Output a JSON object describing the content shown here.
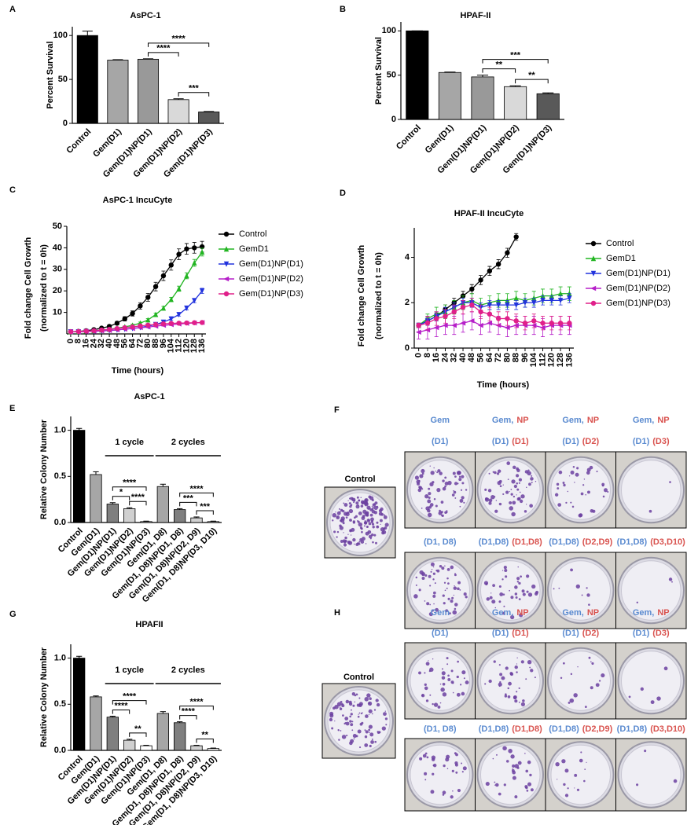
{
  "chart_data": [
    {
      "type": "bar",
      "panel_label": "A",
      "title": "AsPC-1",
      "y_label": "Percent Survival",
      "categories": [
        "Control",
        "Gem(D1)",
        "Gem(D1)NP(D1)",
        "Gem(D1)NP(D2)",
        "Gem(D1)NP(D3)"
      ],
      "values": [
        100,
        72,
        73,
        27,
        13
      ],
      "errors": [
        5,
        0.5,
        0.5,
        1,
        0.5
      ],
      "colors": [
        "#000000",
        "#a6a6a6",
        "#999999",
        "#d9d9d9",
        "#595959"
      ],
      "ylim": [
        0,
        110
      ],
      "yticks": [
        0,
        50,
        100
      ],
      "annotations": [
        {
          "text": "****",
          "between": [
            "Gem(D1)NP(D1)",
            "Gem(D1)NP(D3)"
          ]
        },
        {
          "text": "****",
          "between": [
            "Gem(D1)NP(D1)",
            "Gem(D1)NP(D2)"
          ]
        },
        {
          "text": "***",
          "between": [
            "Gem(D1)NP(D2)",
            "Gem(D1)NP(D3)"
          ]
        }
      ]
    },
    {
      "type": "bar",
      "panel_label": "B",
      "title": "HPAF-II",
      "y_label": "Percent Survival",
      "categories": [
        "Control",
        "Gem(D1)",
        "Gem(D1)NP(D1)",
        "Gem(D1)NP(D2)",
        "Gem(D1)NP(D3)"
      ],
      "values": [
        100,
        53,
        48,
        37,
        29
      ],
      "errors": [
        0,
        0.5,
        2,
        1,
        1
      ],
      "colors": [
        "#000000",
        "#a6a6a6",
        "#999999",
        "#d9d9d9",
        "#595959"
      ],
      "ylim": [
        0,
        110
      ],
      "yticks": [
        0,
        50,
        100
      ],
      "annotations": [
        {
          "text": "***",
          "between": [
            "Gem(D1)NP(D1)",
            "Gem(D1)NP(D3)"
          ]
        },
        {
          "text": "**",
          "between": [
            "Gem(D1)NP(D1)",
            "Gem(D1)NP(D2)"
          ]
        },
        {
          "text": "**",
          "between": [
            "Gem(D1)NP(D2)",
            "Gem(D1)NP(D3)"
          ]
        }
      ]
    },
    {
      "type": "line",
      "panel_label": "C",
      "title": "AsPC-1 IncuCyte",
      "x_label": "Time (hours)",
      "y_label": [
        "Fold change Cell Growth",
        "(normalized to t = 0h)"
      ],
      "x": [
        0,
        8,
        16,
        24,
        32,
        40,
        48,
        56,
        64,
        72,
        80,
        88,
        96,
        104,
        112,
        120,
        128,
        136
      ],
      "xlim": [
        -4,
        140
      ],
      "xticks": [
        0,
        8,
        16,
        24,
        32,
        40,
        48,
        56,
        64,
        72,
        80,
        88,
        96,
        104,
        112,
        120,
        128,
        136
      ],
      "ylim": [
        0,
        50
      ],
      "yticks": [
        10,
        20,
        30,
        40,
        50
      ],
      "series": [
        {
          "name": "Control",
          "color": "#000000",
          "marker": "circle",
          "values": [
            1,
            1.2,
            1.5,
            2,
            2.7,
            3.5,
            5,
            7,
            9.5,
            13,
            17,
            22,
            27,
            32,
            37,
            39.5,
            40,
            40.5
          ],
          "errors": [
            0.1,
            0.2,
            0.3,
            0.4,
            0.5,
            0.6,
            0.8,
            1,
            1.2,
            1.5,
            1.8,
            2,
            2.2,
            2.4,
            2.5,
            2.5,
            2.5,
            2.5
          ]
        },
        {
          "name": "GemD1",
          "color": "#22b522",
          "marker": "triangle",
          "values": [
            1,
            1.1,
            1.3,
            1.5,
            1.8,
            2.2,
            2.7,
            3.3,
            4,
            5,
            6.5,
            9,
            12,
            16,
            21,
            27,
            33,
            38
          ],
          "errors": [
            0.1,
            0.1,
            0.2,
            0.2,
            0.3,
            0.3,
            0.4,
            0.4,
            0.5,
            0.5,
            0.6,
            0.7,
            0.8,
            1,
            1.2,
            1.4,
            1.6,
            1.8
          ]
        },
        {
          "name": "Gem(D1)NP(D1)",
          "color": "#2233dd",
          "marker": "triangle-down",
          "values": [
            1,
            1,
            1.1,
            1.2,
            1.4,
            1.6,
            1.9,
            2.2,
            2.6,
            3,
            3.6,
            4.4,
            5.5,
            7,
            9,
            12,
            15.5,
            20
          ],
          "errors": [
            0.1,
            0.1,
            0.1,
            0.1,
            0.1,
            0.2,
            0.2,
            0.2,
            0.3,
            0.3,
            0.3,
            0.4,
            0.5,
            0.6,
            0.7,
            0.8,
            1,
            1.2
          ]
        },
        {
          "name": "Gem(D1)NP(D2)",
          "color": "#b61fc9",
          "marker": "triangle-left",
          "values": [
            1,
            1,
            1.1,
            1.2,
            1.4,
            1.6,
            1.9,
            2.2,
            2.5,
            2.9,
            3.2,
            3.6,
            4,
            4.3,
            4.6,
            4.9,
            5.1,
            5.3
          ],
          "errors": [
            0.1,
            0.1,
            0.1,
            0.1,
            0.2,
            0.2,
            0.2,
            0.2,
            0.3,
            0.3,
            0.3,
            0.3,
            0.4,
            0.4,
            0.4,
            0.4,
            0.5,
            0.5
          ]
        },
        {
          "name": "Gem(D1)NP(D3)",
          "color": "#e0208a",
          "marker": "circle",
          "values": [
            1,
            1.1,
            1.3,
            1.5,
            1.8,
            2.1,
            2.5,
            2.9,
            3.3,
            3.7,
            4.1,
            4.4,
            4.7,
            4.9,
            5,
            5.1,
            5.2,
            5.3
          ],
          "errors": [
            0.1,
            0.1,
            0.1,
            0.1,
            0.2,
            0.2,
            0.2,
            0.2,
            0.3,
            0.3,
            0.3,
            0.3,
            0.4,
            0.4,
            0.4,
            0.4,
            0.5,
            0.5
          ]
        }
      ]
    },
    {
      "type": "line",
      "panel_label": "D",
      "title": "HPAF-II IncuCyte",
      "x_label": "Time (hours)",
      "y_label": [
        "Fold change Cell Growth",
        "(normalized to t = 0h)"
      ],
      "x": [
        0,
        8,
        16,
        24,
        32,
        40,
        48,
        56,
        64,
        72,
        80,
        88,
        96,
        104,
        112,
        120,
        128,
        136
      ],
      "xlim": [
        -4,
        140
      ],
      "xticks": [
        0,
        8,
        16,
        24,
        32,
        40,
        48,
        56,
        64,
        72,
        80,
        88,
        96,
        104,
        112,
        120,
        128,
        136
      ],
      "ylim": [
        0,
        5.3
      ],
      "yticks": [
        0,
        2,
        4
      ],
      "series": [
        {
          "name": "Control",
          "color": "#000000",
          "marker": "circle",
          "values": [
            1,
            1.2,
            1.4,
            1.7,
            2,
            2.3,
            2.6,
            3,
            3.4,
            3.7,
            4.2,
            4.9,
            null,
            null,
            null,
            null,
            null,
            null
          ],
          "errors": [
            0.1,
            0.15,
            0.15,
            0.2,
            0.2,
            0.2,
            0.2,
            0.2,
            0.2,
            0.2,
            0.2,
            0.15,
            null,
            null,
            null,
            null,
            null,
            null
          ]
        },
        {
          "name": "GemD1",
          "color": "#22b522",
          "marker": "triangle",
          "values": [
            1,
            1.3,
            1.5,
            1.6,
            1.8,
            2,
            2.1,
            1.9,
            2,
            2.1,
            2.1,
            2.2,
            2.1,
            2.2,
            2.3,
            2.3,
            2.4,
            2.4
          ],
          "errors": [
            0.1,
            0.2,
            0.3,
            0.3,
            0.3,
            0.3,
            0.3,
            0.3,
            0.3,
            0.3,
            0.3,
            0.3,
            0.3,
            0.3,
            0.3,
            0.3,
            0.3,
            0.3
          ]
        },
        {
          "name": "Gem(D1)NP(D1)",
          "color": "#2233dd",
          "marker": "triangle-down",
          "values": [
            1,
            1.2,
            1.4,
            1.6,
            1.8,
            2,
            2,
            1.8,
            1.9,
            1.9,
            1.9,
            1.9,
            2,
            2,
            2.1,
            2.1,
            2.1,
            2.2
          ],
          "errors": [
            0.1,
            0.2,
            0.2,
            0.2,
            0.2,
            0.2,
            0.2,
            0.2,
            0.2,
            0.2,
            0.2,
            0.2,
            0.2,
            0.2,
            0.2,
            0.2,
            0.2,
            0.2
          ]
        },
        {
          "name": "Gem(D1)NP(D2)",
          "color": "#b61fc9",
          "marker": "triangle-left",
          "values": [
            0.7,
            0.8,
            0.9,
            1,
            1,
            1.1,
            1.2,
            1,
            1.1,
            1,
            0.9,
            1,
            1,
            1,
            0.9,
            1,
            1,
            1
          ],
          "errors": [
            0.3,
            0.4,
            0.4,
            0.4,
            0.4,
            0.4,
            0.4,
            0.4,
            0.4,
            0.4,
            0.4,
            0.4,
            0.4,
            0.4,
            0.4,
            0.4,
            0.4,
            0.4
          ]
        },
        {
          "name": "Gem(D1)NP(D3)",
          "color": "#e0208a",
          "marker": "circle",
          "values": [
            1,
            1.1,
            1.3,
            1.4,
            1.6,
            1.8,
            1.9,
            1.6,
            1.5,
            1.3,
            1.3,
            1.2,
            1.1,
            1.2,
            1.1,
            1.1,
            1.1,
            1.1
          ],
          "errors": [
            0.1,
            0.3,
            0.3,
            0.3,
            0.3,
            0.3,
            0.3,
            0.3,
            0.3,
            0.3,
            0.3,
            0.3,
            0.3,
            0.3,
            0.3,
            0.3,
            0.3,
            0.3
          ]
        }
      ]
    },
    {
      "type": "bar",
      "panel_label": "E",
      "title": "AsPC-1",
      "y_label": "Relative Colony Number",
      "categories": [
        "Control",
        "Gem(D1)",
        "Gem(D1)NP(D1)",
        "Gem(D1)NP(D2)",
        "Gem(D1)NP(D3)",
        "Gem(D1, D8)",
        "Gem(D1, D8)NP(D1, D8)",
        "Gem(D1, D8)NP(D2, D9)",
        "Gem(D1, D8)NP(D3, D10)"
      ],
      "values": [
        1.0,
        0.52,
        0.2,
        0.15,
        0.01,
        0.39,
        0.14,
        0.05,
        0.01
      ],
      "errors": [
        0.02,
        0.03,
        0.015,
        0.01,
        0.005,
        0.025,
        0.01,
        0.01,
        0.005
      ],
      "colors": [
        "#000000",
        "#a6a6a6",
        "#7f7f7f",
        "#d0d0d0",
        "#ffffff",
        "#a6a6a6",
        "#7f7f7f",
        "#d0d0d0",
        "#ffffff"
      ],
      "ylim": [
        0,
        1.15
      ],
      "yticks": [
        {
          "value": 0,
          "label": "0.0"
        },
        {
          "value": 0.5,
          "label": "0.5"
        },
        {
          "value": 1,
          "label": "1.0"
        }
      ],
      "groups": [
        {
          "label": "1 cycle",
          "from": "Gem(D1)NP(D1)",
          "to": "Gem(D1)NP(D3)"
        },
        {
          "label": "2 cycles",
          "from": "Gem(D1, D8)",
          "to": "Gem(D1, D8)NP(D3, D10)"
        }
      ],
      "annotations": [
        {
          "text": "****",
          "between": [
            "Gem(D1)NP(D1)",
            "Gem(D1)NP(D3)"
          ]
        },
        {
          "text": "*",
          "between": [
            "Gem(D1)NP(D1)",
            "Gem(D1)NP(D2)"
          ]
        },
        {
          "text": "****",
          "between": [
            "Gem(D1)NP(D2)",
            "Gem(D1)NP(D3)"
          ]
        },
        {
          "text": "****",
          "between": [
            "Gem(D1, D8)NP(D1, D8)",
            "Gem(D1, D8)NP(D3, D10)"
          ]
        },
        {
          "text": "***",
          "between": [
            "Gem(D1, D8)NP(D1, D8)",
            "Gem(D1, D8)NP(D2, D9)"
          ]
        },
        {
          "text": "***",
          "between": [
            "Gem(D1, D8)NP(D2, D9)",
            "Gem(D1, D8)NP(D3, D10)"
          ]
        }
      ]
    },
    {
      "type": "bar",
      "panel_label": "G",
      "title": "HPAFII",
      "y_label": "Relative Colony Number",
      "categories": [
        "Control",
        "Gem(D1)",
        "Gem(D1)NP(D1)",
        "Gem(D1)NP(D2)",
        "Gem(D1)NP(D3)",
        "Gem(D1, D8)",
        "Gem(D1, D8)NP(D1, D8)",
        "Gem(D1, D8)NP(D2, D9)",
        "Gem(D1, D8)NP(D3, D10)"
      ],
      "values": [
        1.0,
        0.58,
        0.36,
        0.11,
        0.05,
        0.4,
        0.3,
        0.05,
        0.02
      ],
      "errors": [
        0.02,
        0.01,
        0.01,
        0.01,
        0.005,
        0.02,
        0.01,
        0.005,
        0.005
      ],
      "colors": [
        "#000000",
        "#a6a6a6",
        "#7f7f7f",
        "#d0d0d0",
        "#ffffff",
        "#a6a6a6",
        "#7f7f7f",
        "#d0d0d0",
        "#ffffff"
      ],
      "ylim": [
        0,
        1.15
      ],
      "yticks": [
        {
          "value": 0,
          "label": "0.0"
        },
        {
          "value": 0.5,
          "label": "0.5"
        },
        {
          "value": 1,
          "label": "1.0"
        }
      ],
      "groups": [
        {
          "label": "1 cycle",
          "from": "Gem(D1)NP(D1)",
          "to": "Gem(D1)NP(D3)"
        },
        {
          "label": "2 cycles",
          "from": "Gem(D1, D8)",
          "to": "Gem(D1, D8)NP(D3, D10)"
        }
      ],
      "annotations": [
        {
          "text": "****",
          "between": [
            "Gem(D1)NP(D1)",
            "Gem(D1)NP(D3)"
          ]
        },
        {
          "text": "****",
          "between": [
            "Gem(D1)NP(D1)",
            "Gem(D1)NP(D2)"
          ]
        },
        {
          "text": "**",
          "between": [
            "Gem(D1)NP(D2)",
            "Gem(D1)NP(D3)"
          ]
        },
        {
          "text": "****",
          "between": [
            "Gem(D1, D8)NP(D1, D8)",
            "Gem(D1, D8)NP(D3, D10)"
          ]
        },
        {
          "text": "****",
          "between": [
            "Gem(D1, D8)NP(D1, D8)",
            "Gem(D1, D8)NP(D2, D9)"
          ]
        },
        {
          "text": "**",
          "between": [
            "Gem(D1, D8)NP(D2, D9)",
            "Gem(D1, D8)NP(D3, D10)"
          ]
        }
      ]
    }
  ],
  "photo_panels": [
    {
      "panel_label": "F",
      "control_label": "Control",
      "gem_color": "#5b8bd0",
      "np_color": "#d9534f",
      "headers": [
        {
          "gem": "Gem"
        },
        {
          "gem": "Gem,",
          "np": "NP"
        },
        {
          "gem": "Gem,",
          "np": "NP"
        },
        {
          "gem": "Gem,",
          "np": "NP"
        }
      ],
      "rows": [
        [
          {
            "gem": "(D1)"
          },
          {
            "gem": "(D1)",
            "np": "(D1)"
          },
          {
            "gem": "(D1)",
            "np": "(D2)"
          },
          {
            "gem": "(D1)",
            "np": "(D3)"
          }
        ],
        [
          {
            "gem": "(D1, D8)"
          },
          {
            "gem": "(D1,D8)",
            "np": "(D1,D8)"
          },
          {
            "gem": "(D1,D8)",
            "np": "(D2,D9)"
          },
          {
            "gem": "(D1,D8)",
            "np": "(D3,D10)"
          }
        ]
      ]
    },
    {
      "panel_label": "H",
      "control_label": "Control",
      "gem_color": "#5b8bd0",
      "np_color": "#d9534f",
      "headers": [
        {
          "gem": "Gem"
        },
        {
          "gem": "Gem,",
          "np": "NP"
        },
        {
          "gem": "Gem,",
          "np": "NP"
        },
        {
          "gem": "Gem,",
          "np": "NP"
        }
      ],
      "rows": [
        [
          {
            "gem": "(D1)"
          },
          {
            "gem": "(D1)",
            "np": "(D1)"
          },
          {
            "gem": "(D1)",
            "np": "(D2)"
          },
          {
            "gem": "(D1)",
            "np": "(D3)"
          }
        ],
        [
          {
            "gem": "(D1, D8)"
          },
          {
            "gem": "(D1,D8)",
            "np": "(D1,D8)"
          },
          {
            "gem": "(D1,D8)",
            "np": "(D2,D9)"
          },
          {
            "gem": "(D1,D8)",
            "np": "(D3,D10)"
          }
        ]
      ]
    }
  ]
}
